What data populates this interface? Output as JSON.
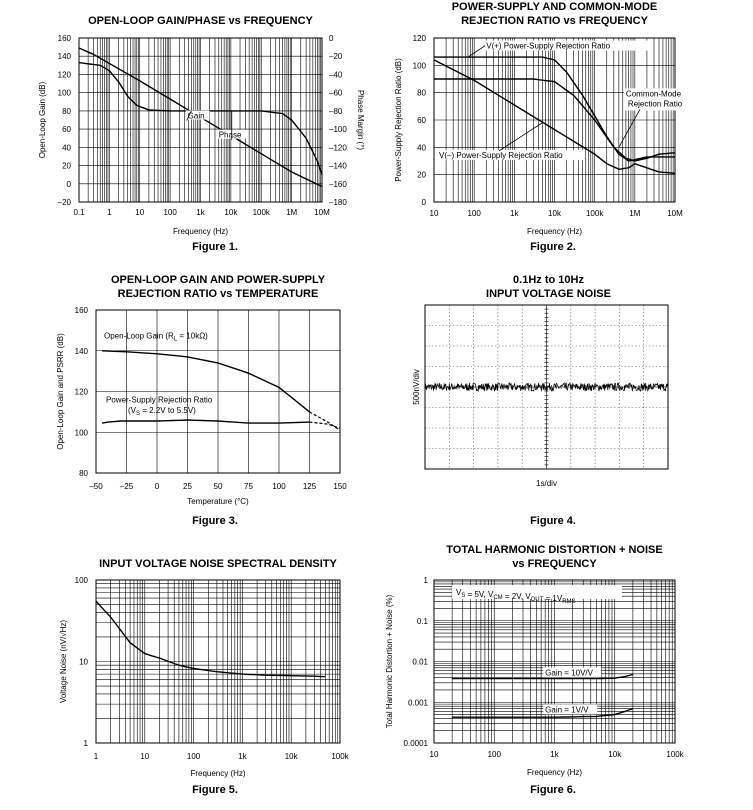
{
  "chart_data": [
    {
      "id": "c1",
      "type": "line",
      "title": [
        "OPEN-LOOP GAIN/PHASE vs FREQUENCY"
      ],
      "figure": "Figure 1.",
      "xlabel": "Frequency (Hz)",
      "ylabel": "Open-Loop Gain (dB)",
      "y2label": "Phase Margin (°)",
      "xscale": "log",
      "xlim": [
        0.1,
        10000000
      ],
      "ylim": [
        -20,
        160
      ],
      "y2lim": [
        -180,
        0
      ],
      "xticks": [
        {
          "v": 0.1,
          "t": "0.1"
        },
        {
          "v": 1,
          "t": "1"
        },
        {
          "v": 10,
          "t": "10"
        },
        {
          "v": 100,
          "t": "100"
        },
        {
          "v": 1000,
          "t": "1k"
        },
        {
          "v": 10000,
          "t": "10k"
        },
        {
          "v": 100000,
          "t": "100k"
        },
        {
          "v": 1000000,
          "t": "1M"
        },
        {
          "v": 10000000,
          "t": "10M"
        }
      ],
      "yticks": [
        {
          "v": 160,
          "t": "160"
        },
        {
          "v": 140,
          "t": "140"
        },
        {
          "v": 120,
          "t": "120"
        },
        {
          "v": 100,
          "t": "100"
        },
        {
          "v": 80,
          "t": "80"
        },
        {
          "v": 60,
          "t": "60"
        },
        {
          "v": 40,
          "t": "40"
        },
        {
          "v": 20,
          "t": "20"
        },
        {
          "v": 0,
          "t": "0"
        },
        {
          "v": -20,
          "t": "–20"
        }
      ],
      "y2ticks": [
        {
          "v": 0,
          "t": "0"
        },
        {
          "v": -20,
          "t": "–20"
        },
        {
          "v": -40,
          "t": "–40"
        },
        {
          "v": -60,
          "t": "–60"
        },
        {
          "v": -80,
          "t": "–80"
        },
        {
          "v": -100,
          "t": "–100"
        },
        {
          "v": -120,
          "t": "–120"
        },
        {
          "v": -140,
          "t": "–140"
        },
        {
          "v": -160,
          "t": "–160"
        },
        {
          "v": -180,
          "t": "–180"
        }
      ],
      "series": [
        {
          "name": "Gain",
          "axis": "y",
          "points": [
            [
              0.1,
              149
            ],
            [
              0.3,
              142
            ],
            [
              1,
              132
            ],
            [
              10,
              113
            ],
            [
              100,
              93
            ],
            [
              1000,
              73
            ],
            [
              10000,
              53
            ],
            [
              100000,
              33
            ],
            [
              1000000,
              13
            ],
            [
              10000000,
              -3
            ]
          ]
        },
        {
          "name": "Phase",
          "axis": "y2",
          "points": [
            [
              0.1,
              -27
            ],
            [
              0.5,
              -30
            ],
            [
              1,
              -36
            ],
            [
              2,
              -48
            ],
            [
              4,
              -64
            ],
            [
              8,
              -74
            ],
            [
              20,
              -79
            ],
            [
              100,
              -80
            ],
            [
              10000,
              -80
            ],
            [
              100000,
              -80
            ],
            [
              500000,
              -83
            ],
            [
              1000000,
              -90
            ],
            [
              3000000,
              -110
            ],
            [
              7000000,
              -135
            ],
            [
              10000000,
              -150
            ]
          ]
        }
      ],
      "annotations": [
        {
          "text": "Gain"
        },
        {
          "text": "Phase"
        }
      ]
    },
    {
      "id": "c2",
      "type": "line",
      "title": [
        "POWER-SUPPLY AND COMMON-MODE",
        "REJECTION RATIO vs FREQUENCY"
      ],
      "figure": "Figure 2.",
      "xlabel": "Frequency (Hz)",
      "ylabel": "Power-Supply Rejection Ratio (dB)",
      "xscale": "log",
      "xlim": [
        10,
        10000000
      ],
      "ylim": [
        0,
        120
      ],
      "xticks": [
        {
          "v": 10,
          "t": "10"
        },
        {
          "v": 100,
          "t": "100"
        },
        {
          "v": 1000,
          "t": "1k"
        },
        {
          "v": 10000,
          "t": "10k"
        },
        {
          "v": 100000,
          "t": "100k"
        },
        {
          "v": 1000000,
          "t": "1M"
        },
        {
          "v": 10000000,
          "t": "10M"
        }
      ],
      "yticks": [
        {
          "v": 120,
          "t": "120"
        },
        {
          "v": 100,
          "t": "100"
        },
        {
          "v": 80,
          "t": "80"
        },
        {
          "v": 60,
          "t": "60"
        },
        {
          "v": 40,
          "t": "40"
        },
        {
          "v": 20,
          "t": "20"
        },
        {
          "v": 0,
          "t": "0"
        }
      ],
      "series": [
        {
          "name": "V(+) Power-Supply Rejection Ratio",
          "points": [
            [
              10,
              106
            ],
            [
              5000,
              106
            ],
            [
              10000,
              104
            ],
            [
              20000,
              95
            ],
            [
              50000,
              78
            ],
            [
              100000,
              63
            ],
            [
              200000,
              48
            ],
            [
              400000,
              35
            ],
            [
              700000,
              30
            ],
            [
              1000000,
              31
            ],
            [
              2000000,
              33
            ],
            [
              10000000,
              33
            ]
          ]
        },
        {
          "name": "Common-Mode Rejection Ratio",
          "points": [
            [
              10,
              90
            ],
            [
              3000,
              90
            ],
            [
              10000,
              88
            ],
            [
              30000,
              78
            ],
            [
              100000,
              60
            ],
            [
              300000,
              40
            ],
            [
              600000,
              32
            ],
            [
              1000000,
              30
            ],
            [
              2000000,
              32
            ],
            [
              4000000,
              35
            ],
            [
              10000000,
              36
            ]
          ]
        },
        {
          "name": "V(–) Power-Supply Rejection Ratio",
          "points": [
            [
              10,
              104
            ],
            [
              100,
              89
            ],
            [
              1000,
              71
            ],
            [
              10000,
              53
            ],
            [
              100000,
              35
            ],
            [
              200000,
              28
            ],
            [
              400000,
              24
            ],
            [
              700000,
              25
            ],
            [
              1000000,
              28
            ],
            [
              2000000,
              25
            ],
            [
              4000000,
              22
            ],
            [
              10000000,
              21
            ]
          ]
        }
      ],
      "annotations": [
        {
          "text": "V(+) Power-Supply Rejection Ratio"
        },
        {
          "text": "Common-Mode"
        },
        {
          "text": "Rejection Ratio"
        },
        {
          "text": "V(–) Power-Supply Rejection Ratio"
        }
      ]
    },
    {
      "id": "c3",
      "type": "line",
      "title": [
        "OPEN-LOOP GAIN AND POWER-SUPPLY",
        "REJECTION RATIO vs TEMPERATURE"
      ],
      "figure": "Figure 3.",
      "xlabel": "Temperature (°C)",
      "ylabel": "Open-Loop Gain and PSRR (dB)",
      "xscale": "linear",
      "xlim": [
        -50,
        150
      ],
      "ylim": [
        80,
        160
      ],
      "xticks": [
        {
          "v": -50,
          "t": "–50"
        },
        {
          "v": -25,
          "t": "–25"
        },
        {
          "v": 0,
          "t": "0"
        },
        {
          "v": 25,
          "t": "25"
        },
        {
          "v": 50,
          "t": "50"
        },
        {
          "v": 75,
          "t": "75"
        },
        {
          "v": 100,
          "t": "100"
        },
        {
          "v": 125,
          "t": "125"
        },
        {
          "v": 150,
          "t": "150"
        }
      ],
      "yticks": [
        {
          "v": 160,
          "t": "160"
        },
        {
          "v": 140,
          "t": "140"
        },
        {
          "v": 120,
          "t": "120"
        },
        {
          "v": 100,
          "t": "100"
        },
        {
          "v": 80,
          "t": "80"
        }
      ],
      "series": [
        {
          "name": "Open-Loop Gain (RL = 10kΩ)",
          "points": [
            [
              -45,
              140
            ],
            [
              -25,
              139.5
            ],
            [
              0,
              138.5
            ],
            [
              25,
              137
            ],
            [
              50,
              134
            ],
            [
              75,
              129
            ],
            [
              100,
              122
            ],
            [
              125,
              110
            ]
          ],
          "dashed_tail": [
            [
              125,
              110
            ],
            [
              140,
              105
            ],
            [
              150,
              101
            ]
          ]
        },
        {
          "name": "Power-Supply Rejection Ratio (VS = 2.2V to 5.5V)",
          "points": [
            [
              -45,
              104.5
            ],
            [
              -40,
              105
            ],
            [
              -30,
              105.5
            ],
            [
              0,
              105.5
            ],
            [
              25,
              106
            ],
            [
              50,
              105.5
            ],
            [
              75,
              104.5
            ],
            [
              100,
              104.5
            ],
            [
              125,
              105
            ]
          ],
          "dashed_tail": [
            [
              125,
              105
            ],
            [
              140,
              104
            ],
            [
              150,
              102
            ]
          ]
        }
      ],
      "annotations": [
        {
          "text": "Open-Loop Gain (R",
          "sub": "L",
          "tail": " = 10kΩ)"
        },
        {
          "text": "Power-Supply Rejection Ratio"
        },
        {
          "text": "(V",
          "sub": "S",
          "tail": " = 2.2V to 5.5V)"
        }
      ]
    },
    {
      "id": "c4",
      "type": "line",
      "title": [
        "0.1Hz to 10Hz",
        "INPUT VOLTAGE NOISE"
      ],
      "figure": "Figure 4.",
      "xlabel": "1s/div",
      "ylabel": "500nV/div",
      "xlim": [
        0,
        10
      ],
      "ylim": [
        -4,
        4
      ],
      "series": [
        {
          "name": "noise",
          "level": 0,
          "amplitude_div": 0.2
        }
      ]
    },
    {
      "id": "c5",
      "type": "line",
      "title": [
        "INPUT VOLTAGE NOISE SPECTRAL DENSITY"
      ],
      "figure": "Figure 5.",
      "xlabel": "Frequency (Hz)",
      "ylabel": "Voltage Noise (nV/√Hz)",
      "xscale": "log",
      "yscale": "log",
      "xlim": [
        1,
        100000
      ],
      "ylim": [
        1,
        100
      ],
      "xticks": [
        {
          "v": 1,
          "t": "1"
        },
        {
          "v": 10,
          "t": "10"
        },
        {
          "v": 100,
          "t": "100"
        },
        {
          "v": 1000,
          "t": "1k"
        },
        {
          "v": 10000,
          "t": "10k"
        },
        {
          "v": 100000,
          "t": "100k"
        }
      ],
      "yticks": [
        {
          "v": 100,
          "t": "100"
        },
        {
          "v": 10,
          "t": "10"
        },
        {
          "v": 1,
          "t": "1"
        }
      ],
      "series": [
        {
          "name": "noise",
          "points": [
            [
              1,
              55
            ],
            [
              2,
              35
            ],
            [
              5,
              17
            ],
            [
              10,
              12.5
            ],
            [
              20,
              11
            ],
            [
              50,
              9
            ],
            [
              100,
              8.2
            ],
            [
              300,
              7.5
            ],
            [
              1000,
              7
            ],
            [
              3000,
              6.8
            ],
            [
              10000,
              6.7
            ],
            [
              30000,
              6.6
            ],
            [
              50000,
              6.5
            ]
          ]
        }
      ]
    },
    {
      "id": "c6",
      "type": "line",
      "title": [
        "TOTAL HARMONIC DISTORTION + NOISE",
        "vs FREQUENCY"
      ],
      "figure": "Figure 6.",
      "xlabel": "Frequency (Hz)",
      "ylabel": "Total Harmonic Distortion + Noise (%)",
      "xscale": "log",
      "yscale": "log",
      "xlim": [
        10,
        100000
      ],
      "ylim": [
        0.0001,
        1
      ],
      "xticks": [
        {
          "v": 10,
          "t": "10"
        },
        {
          "v": 100,
          "t": "100"
        },
        {
          "v": 1000,
          "t": "1k"
        },
        {
          "v": 10000,
          "t": "10k"
        },
        {
          "v": 100000,
          "t": "100k"
        }
      ],
      "yticks": [
        {
          "v": 1,
          "t": "1"
        },
        {
          "v": 0.1,
          "t": "0.1"
        },
        {
          "v": 0.01,
          "t": "0.01"
        },
        {
          "v": 0.001,
          "t": "0.001"
        },
        {
          "v": 0.0001,
          "t": "0.0001"
        }
      ],
      "series": [
        {
          "name": "Gain = 10V/V",
          "points": [
            [
              20,
              0.0038
            ],
            [
              1000,
              0.0038
            ],
            [
              5000,
              0.0038
            ],
            [
              10000,
              0.0039
            ],
            [
              15000,
              0.0043
            ],
            [
              20000,
              0.0048
            ]
          ]
        },
        {
          "name": "Gain = 1V/V",
          "points": [
            [
              20,
              0.00043
            ],
            [
              1000,
              0.00043
            ],
            [
              5000,
              0.00045
            ],
            [
              10000,
              0.0005
            ],
            [
              15000,
              0.0006
            ],
            [
              20000,
              0.0007
            ]
          ]
        }
      ],
      "annotations": [
        {
          "text": "Gain = 10V/V"
        },
        {
          "text": "Gain = 1V/V"
        }
      ],
      "conditions": {
        "parts": [
          [
            "V",
            "S"
          ],
          [
            " = 5V, ",
            ""
          ],
          [
            "V",
            "CM"
          ],
          [
            " = 2V, ",
            ""
          ],
          [
            "V",
            "OUT"
          ],
          [
            " = 1V",
            ""
          ],
          [
            "",
            "RMS"
          ]
        ]
      }
    }
  ]
}
